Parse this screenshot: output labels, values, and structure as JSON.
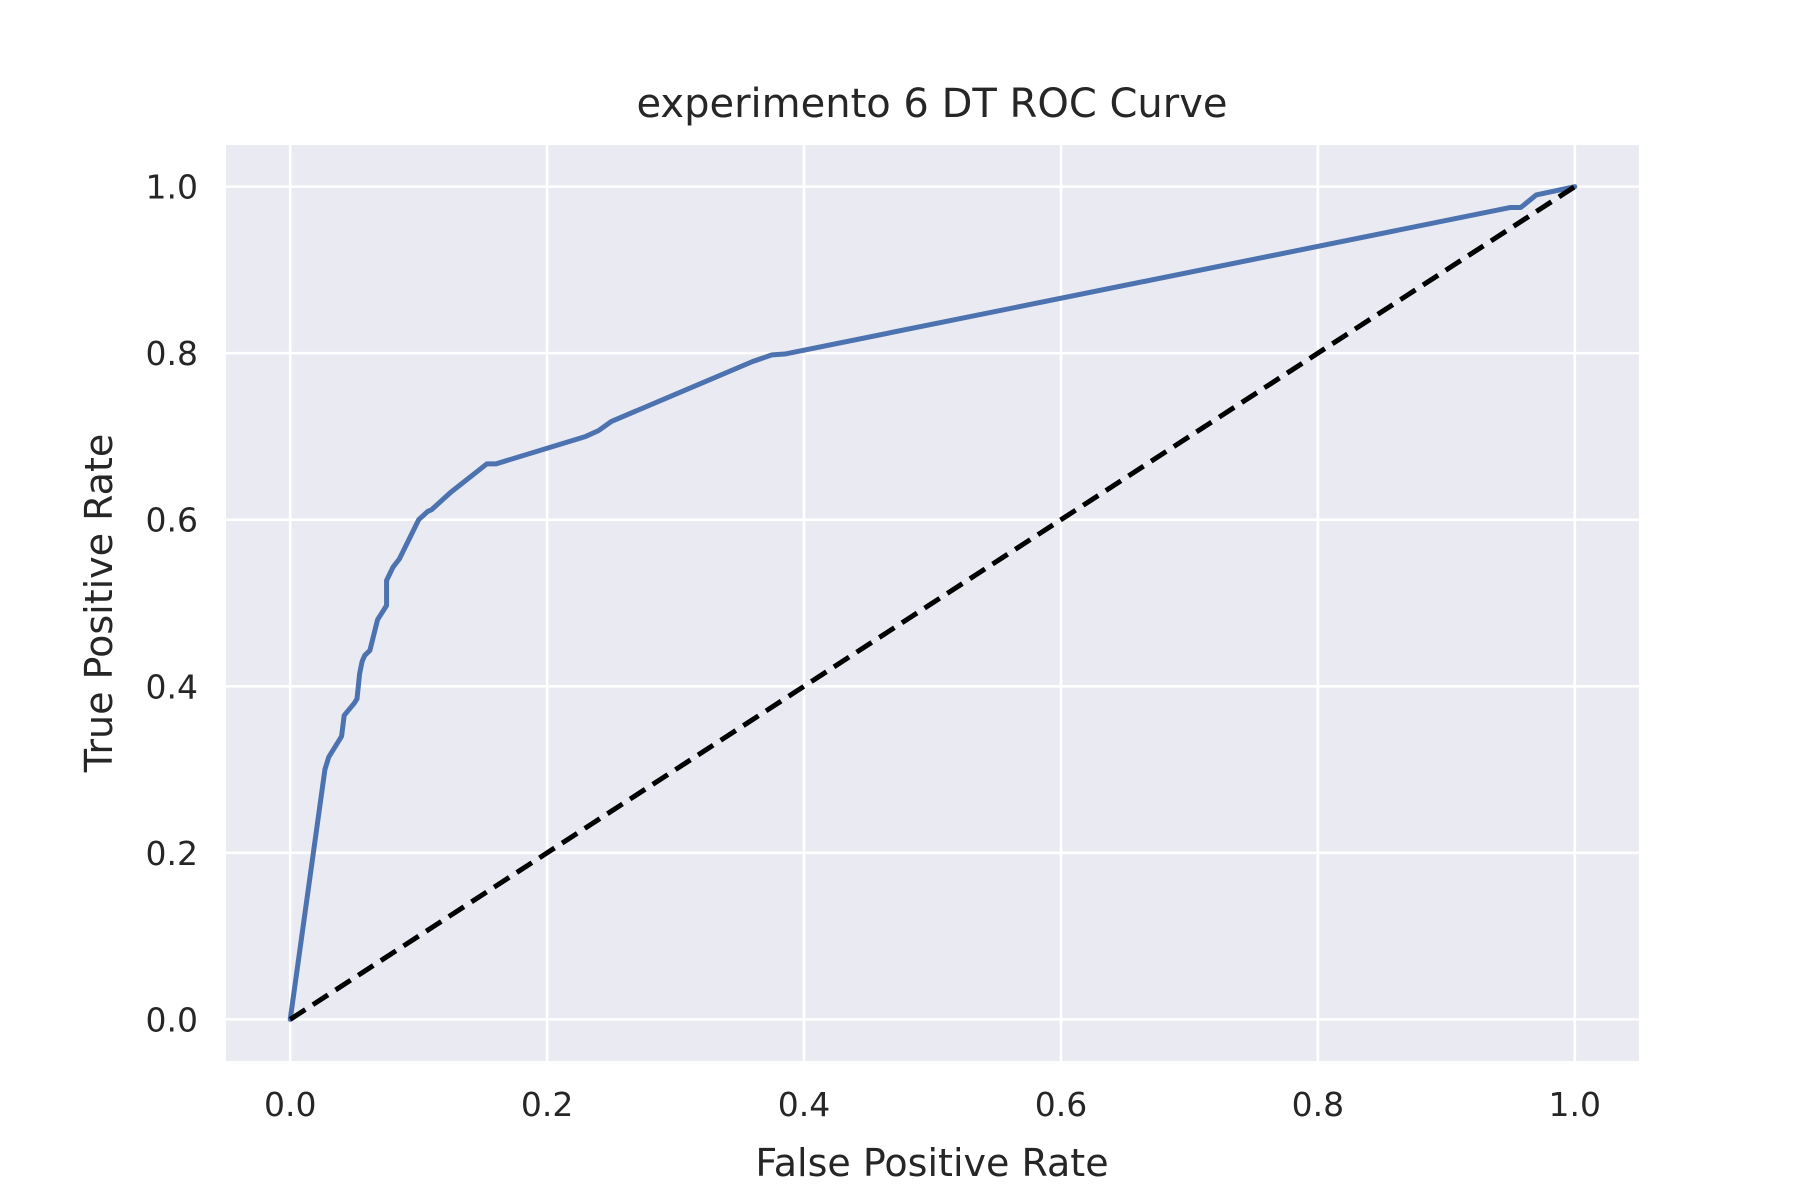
{
  "chart_data": {
    "type": "line",
    "title": "experimento 6 DT ROC Curve",
    "xlabel": "False Positive Rate",
    "ylabel": "True Positive Rate",
    "xlim": [
      -0.05,
      1.05
    ],
    "ylim": [
      -0.05,
      1.05
    ],
    "xticks": [
      "0.0",
      "0.2",
      "0.4",
      "0.6",
      "0.8",
      "1.0"
    ],
    "yticks": [
      "0.0",
      "0.2",
      "0.4",
      "0.6",
      "0.8",
      "1.0"
    ],
    "grid": true,
    "background_color": "#eaeaf2",
    "grid_color": "#ffffff",
    "series": [
      {
        "color": "#4c72b0",
        "dashed": false,
        "points": [
          [
            0.0,
            0.0
          ],
          [
            0.027,
            0.3
          ],
          [
            0.03,
            0.315
          ],
          [
            0.038,
            0.335
          ],
          [
            0.04,
            0.34
          ],
          [
            0.042,
            0.365
          ],
          [
            0.05,
            0.38
          ],
          [
            0.052,
            0.385
          ],
          [
            0.054,
            0.415
          ],
          [
            0.056,
            0.43
          ],
          [
            0.058,
            0.437
          ],
          [
            0.062,
            0.443
          ],
          [
            0.068,
            0.48
          ],
          [
            0.075,
            0.497
          ],
          [
            0.075,
            0.527
          ],
          [
            0.08,
            0.543
          ],
          [
            0.085,
            0.553
          ],
          [
            0.1,
            0.6
          ],
          [
            0.107,
            0.61
          ],
          [
            0.11,
            0.612
          ],
          [
            0.125,
            0.633
          ],
          [
            0.153,
            0.667
          ],
          [
            0.16,
            0.667
          ],
          [
            0.23,
            0.7
          ],
          [
            0.24,
            0.707
          ],
          [
            0.25,
            0.718
          ],
          [
            0.36,
            0.79
          ],
          [
            0.375,
            0.798
          ],
          [
            0.385,
            0.799
          ],
          [
            0.95,
            0.975
          ],
          [
            0.958,
            0.975
          ],
          [
            0.97,
            0.99
          ],
          [
            1.0,
            1.0
          ]
        ]
      },
      {
        "color": "#000000",
        "dashed": true,
        "points": [
          [
            0.0,
            0.0
          ],
          [
            1.0,
            1.0
          ]
        ]
      }
    ]
  }
}
